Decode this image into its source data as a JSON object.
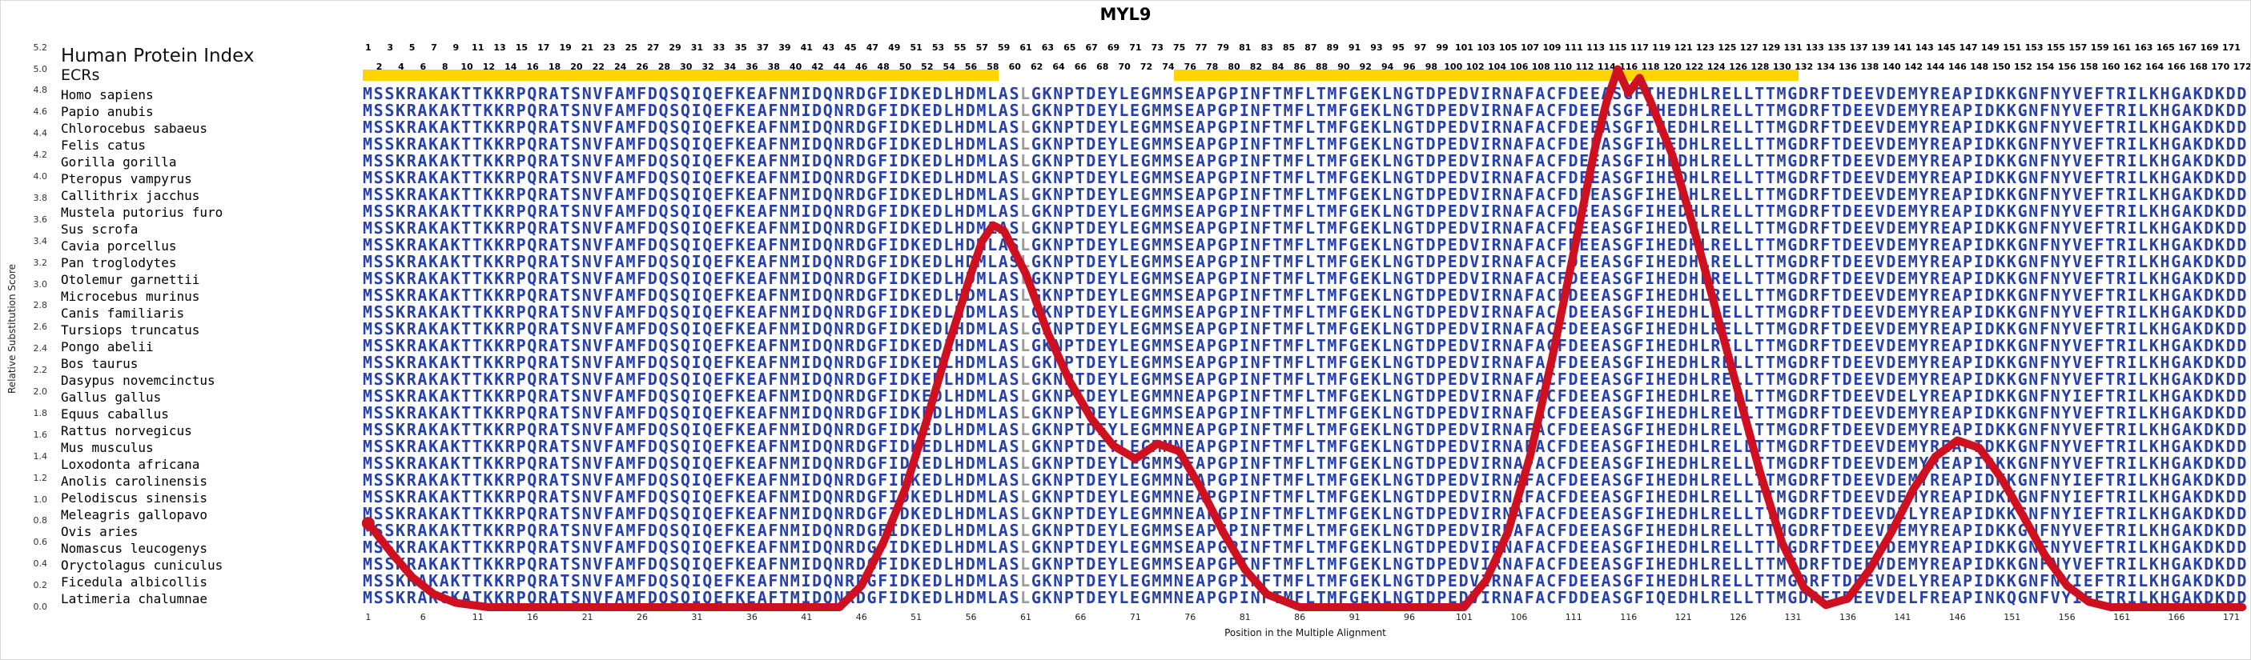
{
  "title": "MYL9",
  "left_panel": {
    "index_label": "Human Protein Index",
    "ecr_label": "ECRs"
  },
  "y_axis": {
    "label": "Relative Substitution Score",
    "ticks": [
      5.2,
      5.0,
      4.8,
      4.6,
      4.4,
      4.2,
      4.0,
      3.8,
      3.6,
      3.4,
      3.2,
      3.0,
      2.8,
      2.6,
      2.4,
      2.2,
      2.0,
      1.8,
      1.6,
      1.4,
      1.2,
      1.0,
      0.8,
      0.6,
      0.4,
      0.2,
      0.0
    ]
  },
  "x_axis": {
    "label": "Position in the Multiple Alignment",
    "ticks": [
      1,
      6,
      11,
      16,
      21,
      26,
      31,
      36,
      41,
      46,
      51,
      56,
      61,
      66,
      71,
      76,
      81,
      86,
      91,
      96,
      101,
      106,
      111,
      116,
      121,
      126,
      131,
      136,
      141,
      146,
      151,
      156,
      161,
      166,
      171
    ]
  },
  "position_header": {
    "start": 1,
    "end": 172,
    "layout": "odd-numbers-top-row, even-numbers-bottom-row"
  },
  "ecr_regions": [
    {
      "start": 1,
      "end": 58
    },
    {
      "start": 75,
      "end": 131
    }
  ],
  "alignment": {
    "length": 172,
    "low_conservation_columns": [
      61
    ],
    "species": [
      {
        "name": "Homo sapiens",
        "sequence": "MSSKRAKAKTTKKRPQRATSNVFAMFDQSQIQEFKEAFNMIDQNRDGFIDKEDLHDMLASLGKNPTDEYLEGMMSEAPGPINFTMFLTMFGEKLNGTDPEDVIRNAFACFDEEASGFIHEDHLRELLTTMGDRFTDEEVDEMYREAPIDKKGNFNYVEFTRILKHGAKDKDD"
      },
      {
        "name": "Papio anubis",
        "sequence": "MSSKRAKAKTTKKRPQRATSNVFAMFDQSQIQEFKEAFNMIDQNRDGFIDKEDLHDMLASLGKNPTDEYLEGMMSEAPGPINFTMFLTMFGEKLNGTDPEDVIRNAFACFDEEASGFIHEDHLRELLTTMGDRFTDEEVDEMYREAPIDKKGNFNYVEFTRILKHGAKDKDD"
      },
      {
        "name": "Chlorocebus sabaeus",
        "sequence": "MSSKRAKAKTTKKRPQRATSNVFAMFDQSQIQEFKEAFNMIDQNRDGFIDKEDLHDMLASLGKNPTDEYLEGMMSEAPGPINFTMFLTMFGEKLNGTDPEDVIRNAFACFDEEASGFIHEDHLRELLTTMGDRFTDEEVDEMYREAPIDKKGNFNYVEFTRILKHGAKDKDD"
      },
      {
        "name": "Felis catus",
        "sequence": "MSSKRAKAKTTKKRPQRATSNVFAMFDQSQIQEFKEAFNMIDQNRDGFIDKEDLHDMLASLGKNPTDEYLEGMMSEAPGPINFTMFLTMFGEKLNGTDPEDVIRNAFACFDEEASGFIHEDHLRELLTTMGDRFTDEEVDEMYREAPIDKKGNFNYVEFTRILKHGAKDKDD"
      },
      {
        "name": "Gorilla gorilla",
        "sequence": "MSSKRAKAKTTKKRPQRATSNVFAMFDQSQIQEFKEAFNMIDQNRDGFIDKEDLHDMLASLGKNPTDEYLEGMMSEAPGPINFTMFLTMFGEKLNGTDPEDVIRNAFACFDEEASGFIHEDHLRELLTTMGDRFTDEEVDEMYREAPIDKKGNFNYVEFTRILKHGAKDKDD"
      },
      {
        "name": "Pteropus vampyrus",
        "sequence": "MSSKRAKAKTTKKRPQRATSNVFAMFDQSQIQEFKEAFNMIDQNRDGFIDKEDLHDMLASLGKNPTDEYLEGMMSEAPGPINFTMFLTMFGEKLNGTDPEDVIRNAFACFDEEASGFIHEDHLRELLTTMGDRFTDEEVDEMYREAPIDKKGNFNYVEFTRILKHGAKDKDD"
      },
      {
        "name": "Callithrix jacchus",
        "sequence": "MSSKRAKAKTTKKRPQRATSNVFAMFDQSQIQEFKEAFNMIDQNRDGFIDKEDLHDMLASLGKNPTDEYLEGMMSEAPGPINFTMFLTMFGEKLNGTDPEDVIRNAFACFDEEASGFIHEDHLRELLTTMGDRFTDEEVDEMYREAPIDKKGNFNYVEFTRILKHGAKDKDD"
      },
      {
        "name": "Mustela putorius furo",
        "sequence": "MSSKRAKAKTTKKRPQRATSNVFAMFDQSQIQEFKEAFNMIDQNRDGFIDKEDLHDMLASLGKNPTDEYLEGMMSEAPGPINFTMFLTMFGEKLNGTDPEDVIRNAFACFDEEASGFIHEDHLRELLTTMGDRFTDEEVDEMYREAPIDKKGNFNYVEFTRILKHGAKDKDD"
      },
      {
        "name": "Sus scrofa",
        "sequence": "MSSKRAKAKTTKKRPQRATSNVFAMFDQSQIQEFKEAFNMIDQNRDGFIDKEDLHDMLASLGKNPTDEYLEGMMSEAPGPINFTMFLTMFGEKLNGTDPEDVIRNAFACFDEEASGFIHEDHLRELLTTMGDRFTDEEVDEMYREAPIDKKGNFNYVEFTRILKHGAKDKDD"
      },
      {
        "name": "Cavia porcellus",
        "sequence": "MSSKRAKAKTTKKRPQRATSNVFAMFDQSQIQEFKEAFNMIDQNRDGFIDKEDLHDMLASLGKNPTDEYLEGMMSEAPGPINFTMFLTMFGEKLNGTDPEDVIRNAFACFDEEASGFIHEDHLRELLTTMGDRFTDEEVDEMYREAPIDKKGNFNYVEFTRILKHGAKDKDD"
      },
      {
        "name": "Pan troglodytes",
        "sequence": "MSSKRAKAKTTKKRPQRATSNVFAMFDQSQIQEFKEAFNMIDQNRDGFIDKEDLHDMLASLGKNPTDEYLEGMMSEAPGPINFTMFLTMFGEKLNGTDPEDVIRNAFACFDEEASGFIHEDHLRELLTTMGDRFTDEEVDEMYREAPIDKKGNFNYVEFTRILKHGAKDKDD"
      },
      {
        "name": "Otolemur garnettii",
        "sequence": "MSSKRAKAKTTKKRPQRATSNVFAMFDQSQIQEFKEAFNMIDQNRDGFIDKEDLHDMLASLGKNPTDEYLEGMMSEAPGPINFTMFLTMFGEKLNGTDPEDVIRNAFACFDEEASGFIHEDHLRELLTTMGDRFTDEEVDEMYREAPIDKKGNFNYVEFTRILKHGAKDKDD"
      },
      {
        "name": "Microcebus murinus",
        "sequence": "MSSKRAKAKTTKKRPQRATSNVFAMFDQSQIQEFKEAFNMIDQNRDGFIDKEDLHDMLASLGKNPTDEYLEGMMSEAPGPINFTMFLTMFGEKLNGTDPEDVIRNAFACFDEEASGFIHEDHLRELLTTMGDRFTDEEVDEMYREAPIDKKGNFNYVEFTRILKHGAKDKDD"
      },
      {
        "name": "Canis familiaris",
        "sequence": "MSSKRAKAKTTKKRPQRATSNVFAMFDQSQIQEFKEAFNMIDQNRDGFIDKEDLHDMLASLGKNPTDEYLEGMMSEAPGPINFTMFLTMFGEKLNGTDPEDVIRNAFACFDEEASGFIHEDHLRELLTTMGDRFTDEEVDEMYREAPIDKKGNFNYVEFTRILKHGAKDKDD"
      },
      {
        "name": "Tursiops truncatus",
        "sequence": "MSSKRAKAKTTKKRPQRATSNVFAMFDQSQIQEFKEAFNMIDQNRDGFIDKEDLHDMLASLGKNPTDEYLEGMMSEAPGPINFTMFLTMFGEKLNGTDPEDVIRNAFACFDEEASGFIHEDHLRELLTTMGDRFTDEEVDEMYREAPIDKKGNFNYVEFTRILKHGAKDKDD"
      },
      {
        "name": "Pongo abelii",
        "sequence": "MSSKRAKAKTTKKRPQRATSNVFAMFDQSQIQEFKEAFNMIDQNRDGFIDKEDLHDMLASLGKNPTDEYLEGMMSEAPGPINFTMFLTMFGEKLNGTDPEDVIRNAFACFDEEASGFIHEDHLRELLTTMGDRFTDEEVDEMYREAPIDKKGNFNYVEFTRILKHGAKDKDD"
      },
      {
        "name": "Bos taurus",
        "sequence": "MSSKRAKAKTTKKRPQRATSNVFAMFDQSQIQEFKEAFNMIDQNRDGFIDKEDLHDMLASLGKNPTDEYLEGMMSEAPGPINFTMFLTMFGEKLNGTDPEDVIRNAFACFDEEASGFIHEDHLRELLTTMGDRFTDEEVDEMYREAPIDKKGNFNYVEFTRILKHGAKDKDD"
      },
      {
        "name": "Dasypus novemcinctus",
        "sequence": "MSSKRAKAKTTKKRPQRATSNVFAMFDQSQIQEFKEAFNMIDQNRDGFIDKEDLHDMLASLGKNPTDEYLEGMMSEAPGPINFTMFLTMFGEKLNGTDPEDVIRNAFACFDEEASGFIHEDHLRELLTTMGDRFTDEEVDEMYREAPIDKKGNFNYVEFTRILKHGAKDKDD"
      },
      {
        "name": "Gallus gallus",
        "sequence": "MSSKRAKAKTTKKRPQRATSNVFAMFDQSQIQEFKEAFNMIDQNRDGFIDKEDLHDMLASLGKNPTDEYLEGMMNEAPGPINFTMFLTMFGEKLNGTDPEDVIRNAFACFDEEASGFIHEDHLRELLTTMGDRFTDEEVDELYREAPIDKKGNFNYIEFTRILKHGAKDKDD"
      },
      {
        "name": "Equus caballus",
        "sequence": "MSSKRAKAKTTKKRPQRATSNVFAMFDQSQIQEFKEAFNMIDQNRDGFIDKEDLHDMLASLGKNPTDEYLEGMMSEAPGPINFTMFLTMFGEKLNGTDPEDVIRNAFACFDEEASGFIHEDHLRELLTTMGDRFTDEEVDEMYREAPIDKKGNFNYVEFTRILKHGAKDKDD"
      },
      {
        "name": "Rattus norvegicus",
        "sequence": "MSSKRAKAKTTKKRPQRATSNVFAMFDQSQIQEFKEAFNMIDQNRDGFIDKEDLHDMLASLGKNPTDEYLEGMMNEAPGPINFTMFLTMFGEKLNGTDPEDVIRNAFACFDEEASGFIHEDHLRELLTTMGDRFTDEEVDEMYREAPIDKKGNFNYVEFTRILKHGAKDKDD"
      },
      {
        "name": "Mus musculus",
        "sequence": "MSSKRAKAKTTKKRPQRATSNVFAMFDQSQIQEFKEAFNMIDQNRDGFIDKEDLHDMLASLGKNPTDEYLEGMMNEAPGPINFTMFLTMFGEKLNGTDPEDVIRNAFACFDEEASGFIHEDHLRELLTTMGDRFTDEEVDEMYREAPIDKKGNFNYVEFTRILKHGAKDKDD"
      },
      {
        "name": "Loxodonta africana",
        "sequence": "MSSKRAKAKTTKKRPQRATSNVFAMFDQSQIQEFKEAFNMIDQNRDGFIDKEDLHDMLASLGKNPTDEYLEGMMSEAPGPINFTMFLTMFGEKLNGTDPEDVIRNAFACFDEEASGFIHEDHLRELLTTMGDRFTDEEVDEMYREAPIDKKGNFNYVEFTRILKHGAKDKDD"
      },
      {
        "name": "Anolis carolinensis",
        "sequence": "MSSKRAKAKTTKKRPQRATSNVFAMFDQSQIQEFKEAFNMIDQNRDGFIDKEDLHDMLASLGKNPTDEYLEGMMNEAPGPINFTMFLTMFGEKLNGTDPEDVIRNAFACFDEEASGFIHEDHLRELLTTMGDRFTDEEVDEMYREAPIDKKGNFNYIEFTRILKHGAKDKDD"
      },
      {
        "name": "Pelodiscus sinensis",
        "sequence": "MSSKRAKAKTTKKRPQRATSNVFAMFDQSQIQEFKEAFNMIDQNRDGFIDKEDLHDMLASLGKNPTDEYLEGMMNEAPGPINFTMFLTMFGEKLNGTDPEDVIRNAFACFDEEASGFIHEDHLRELLTTMGDRFTDEEVDEMYREAPIDKKGNFNYIEFTRILKHGAKDKDD"
      },
      {
        "name": "Meleagris gallopavo",
        "sequence": "MSSKRAKAKTTKKRPQRATSNVFAMFDQSQIQEFKEAFNMIDQNRDGFIDKEDLHDMLASLGKNPTDEYLEGMMNEAPGPINFTMFLTMFGEKLNGTDPEDVIRNAFACFDEEASGFIHEDHLRELLTTMGDRFTDEEVDELYREAPIDKKGNFNYIEFTRILKHGAKDKDD"
      },
      {
        "name": "Ovis aries",
        "sequence": "MSSKRAKAKTTKKRPQRATSNVFAMFDQSQIQEFKEAFNMIDQNRDGFIDKEDLHDMLASLGKNPTDEYLEGMMSEAPGPINFTMFLTMFGEKLNGTDPEDVIRNAFACFDEEASGFIHEDHLRELLTTMGDRFTDEEVDEMYREAPIDKKGNFNYVEFTRILKHGAKDKDD"
      },
      {
        "name": "Nomascus leucogenys",
        "sequence": "MSSKRAKAKTTKKRPQRATSNVFAMFDQSQIQEFKEAFNMIDQNRDGFIDKEDLHDMLASLGKNPTDEYLEGMMSEAPGPINFTMFLTMFGEKLNGTDPEDVIRNAFACFDEEASGFIHEDHLRELLTTMGDRFTDEEVDEMYREAPIDKKGNFNYVEFTRILKHGAKDKDD"
      },
      {
        "name": "Oryctolagus cuniculus",
        "sequence": "MSSKRAKAKTTKKRPQRATSNVFAMFDQSQIQEFKEAFNMIDQNRDGFIDKEDLHDMLASLGKNPTDEYLEGMMSEAPGPINFTMFLTMFGEKLNGTDPEDVIRNAFACFDEEASGFIHEDHLRELLTTMGDRFTDEEVDEMYREAPIDKKGNFNYVEFTRILKHGAKDKDD"
      },
      {
        "name": "Ficedula albicollis",
        "sequence": "MSSKRAKAKTTKKRPQRATSNVFAMFDQSQIQEFKEAFNMIDQNRDGFIDKEDLHDMLASLGKNPTDEYLEGMMNEAPGPINFTMFLTMFGEKLNGTDPEDVIRNAFACFDEEASGFIHEDHLRELLTTMGDRFTDEEVDELYREAPIDKKGNFNYIEFTRILKHGAKDKDD"
      },
      {
        "name": "Latimeria chalumnae",
        "sequence": "MSSKRAKGKATKKRPQRATSNVFAMFDQSQIQEFKEAFTMIDQNRDGFIDKEDLHDMLASLGKNPTDEYLEGMMNEAPGPINFTMFLTMFGEKLNGTDPEDVIRNAFACFDDEASGFIQEDHLRELLTTMGDRFTDEEVDELFREAPINKQGNFVYIEFTRILKHGAKDKDD"
      }
    ]
  },
  "chart_data": {
    "type": "line",
    "title": "MYL9",
    "xlabel": "Position in the Multiple Alignment",
    "ylabel": "Relative Substitution Score",
    "xlim": [
      1,
      172
    ],
    "ylim": [
      0.0,
      5.2
    ],
    "x_ticks": [
      1,
      6,
      11,
      16,
      21,
      26,
      31,
      36,
      41,
      46,
      51,
      56,
      61,
      66,
      71,
      76,
      81,
      86,
      91,
      96,
      101,
      106,
      111,
      116,
      121,
      126,
      131,
      136,
      141,
      146,
      151,
      156,
      161,
      166,
      171
    ],
    "y_ticks": [
      0.0,
      0.2,
      0.4,
      0.6,
      0.8,
      1.0,
      1.2,
      1.4,
      1.6,
      1.8,
      2.0,
      2.2,
      2.4,
      2.6,
      2.8,
      3.0,
      3.2,
      3.4,
      3.6,
      3.8,
      4.0,
      4.2,
      4.4,
      4.6,
      4.8,
      5.0,
      5.2
    ],
    "grid": false,
    "legend": "none",
    "series": [
      {
        "name": "Relative substitution score",
        "points": [
          [
            1,
            0.78
          ],
          [
            3,
            0.52
          ],
          [
            5,
            0.28
          ],
          [
            7,
            0.12
          ],
          [
            9,
            0.04
          ],
          [
            12,
            0
          ],
          [
            44,
            0
          ],
          [
            46,
            0.2
          ],
          [
            48,
            0.6
          ],
          [
            50,
            1.1
          ],
          [
            52,
            1.75
          ],
          [
            54,
            2.45
          ],
          [
            56,
            3.1
          ],
          [
            57,
            3.4
          ],
          [
            58,
            3.55
          ],
          [
            59,
            3.5
          ],
          [
            61,
            3.1
          ],
          [
            63,
            2.55
          ],
          [
            65,
            2.1
          ],
          [
            67,
            1.75
          ],
          [
            69,
            1.5
          ],
          [
            71,
            1.38
          ],
          [
            73,
            1.52
          ],
          [
            75,
            1.45
          ],
          [
            77,
            1.1
          ],
          [
            79,
            0.7
          ],
          [
            81,
            0.35
          ],
          [
            83,
            0.12
          ],
          [
            86,
            0
          ],
          [
            101,
            0
          ],
          [
            103,
            0.25
          ],
          [
            105,
            0.7
          ],
          [
            107,
            1.4
          ],
          [
            109,
            2.3
          ],
          [
            111,
            3.3
          ],
          [
            113,
            4.3
          ],
          [
            114,
            4.7
          ],
          [
            115,
            5.0
          ],
          [
            116,
            4.78
          ],
          [
            117,
            4.92
          ],
          [
            118,
            4.7
          ],
          [
            120,
            4.2
          ],
          [
            122,
            3.5
          ],
          [
            124,
            2.75
          ],
          [
            126,
            2.0
          ],
          [
            128,
            1.25
          ],
          [
            130,
            0.6
          ],
          [
            132,
            0.18
          ],
          [
            134,
            0.02
          ],
          [
            136,
            0.08
          ],
          [
            138,
            0.35
          ],
          [
            140,
            0.7
          ],
          [
            142,
            1.1
          ],
          [
            144,
            1.4
          ],
          [
            146,
            1.55
          ],
          [
            148,
            1.48
          ],
          [
            150,
            1.2
          ],
          [
            152,
            0.85
          ],
          [
            154,
            0.48
          ],
          [
            156,
            0.2
          ],
          [
            158,
            0.05
          ],
          [
            160,
            0
          ],
          [
            172,
            0
          ]
        ]
      }
    ]
  },
  "colors": {
    "sequence": "#2741a8",
    "sequence_low": "#9b9b9b",
    "ecr_bar": "#ffd400",
    "curve": "#cf1020",
    "axis_text": "#333333"
  }
}
